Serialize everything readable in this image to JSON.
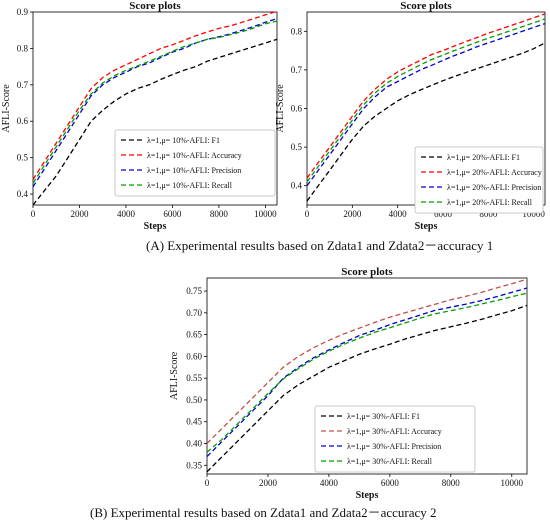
{
  "chart_data": [
    {
      "type": "line",
      "title": "Score plots",
      "xlabel": "Steps",
      "ylabel": "AFLI-Score",
      "xlim": [
        0,
        10500
      ],
      "ylim": [
        0.37,
        0.9
      ],
      "xticks": [
        0,
        2000,
        4000,
        6000,
        8000,
        10000
      ],
      "yticks": [
        0.4,
        0.5,
        0.6,
        0.7,
        0.8,
        0.9
      ],
      "ytick_labels": [
        "0.4",
        "0.5",
        "0.6",
        "0.7",
        "0.8",
        "0.9"
      ],
      "legend_position": "lower-right",
      "grid": false,
      "x": [
        0,
        500,
        1000,
        1500,
        2000,
        2500,
        3000,
        3500,
        4000,
        4500,
        5000,
        5500,
        6000,
        6500,
        7000,
        7500,
        8000,
        8500,
        9000,
        9500,
        10000,
        10500
      ],
      "series": [
        {
          "name": "λ=1,μ= 10%-AFLI: F1",
          "color": "#000000",
          "values": [
            0.37,
            0.41,
            0.45,
            0.5,
            0.55,
            0.6,
            0.63,
            0.655,
            0.675,
            0.69,
            0.7,
            0.715,
            0.728,
            0.74,
            0.75,
            0.765,
            0.775,
            0.785,
            0.795,
            0.805,
            0.815,
            0.825
          ]
        },
        {
          "name": "λ=1,μ= 10%-AFLI: Accuracy",
          "color": "#ff0000",
          "values": [
            0.44,
            0.49,
            0.54,
            0.59,
            0.64,
            0.69,
            0.72,
            0.74,
            0.755,
            0.77,
            0.785,
            0.8,
            0.81,
            0.822,
            0.835,
            0.845,
            0.855,
            0.862,
            0.872,
            0.882,
            0.892,
            0.902
          ]
        },
        {
          "name": "λ=1,μ= 10%-AFLI: Precision",
          "color": "#0000cc",
          "values": [
            0.42,
            0.47,
            0.52,
            0.57,
            0.62,
            0.67,
            0.7,
            0.72,
            0.735,
            0.75,
            0.76,
            0.775,
            0.79,
            0.8,
            0.815,
            0.825,
            0.832,
            0.84,
            0.85,
            0.86,
            0.872,
            0.882
          ]
        },
        {
          "name": "λ=1,μ= 10%-AFLI: Recall",
          "color": "#00a000",
          "values": [
            0.43,
            0.48,
            0.53,
            0.58,
            0.63,
            0.675,
            0.705,
            0.725,
            0.74,
            0.752,
            0.765,
            0.778,
            0.792,
            0.805,
            0.815,
            0.825,
            0.83,
            0.838,
            0.846,
            0.856,
            0.868,
            0.875
          ]
        }
      ]
    },
    {
      "type": "line",
      "title": "Score plots",
      "xlabel": "Steps",
      "ylabel": "AFLI-Score",
      "xlim": [
        0,
        10500
      ],
      "ylim": [
        0.35,
        0.85
      ],
      "xticks": [
        0,
        2000,
        4000,
        6000,
        8000,
        10000
      ],
      "yticks": [
        0.4,
        0.5,
        0.6,
        0.7,
        0.8
      ],
      "ytick_labels": [
        "0.4",
        "0.5",
        "0.6",
        "0.7",
        "0.8"
      ],
      "legend_position": "lower-right",
      "grid": false,
      "x": [
        0,
        500,
        1000,
        1500,
        2000,
        2500,
        3000,
        3500,
        4000,
        4500,
        5000,
        5500,
        6000,
        6500,
        7000,
        7500,
        8000,
        8500,
        9000,
        9500,
        10000,
        10500
      ],
      "series": [
        {
          "name": "λ=1,μ= 20%-AFLI: F1",
          "color": "#000000",
          "values": [
            0.36,
            0.4,
            0.44,
            0.48,
            0.52,
            0.555,
            0.58,
            0.6,
            0.62,
            0.635,
            0.648,
            0.66,
            0.672,
            0.683,
            0.693,
            0.703,
            0.713,
            0.723,
            0.733,
            0.743,
            0.755,
            0.77
          ]
        },
        {
          "name": "λ=1,μ= 20%-AFLI: Accuracy",
          "color": "#ff0000",
          "values": [
            0.42,
            0.46,
            0.5,
            0.54,
            0.58,
            0.62,
            0.65,
            0.675,
            0.695,
            0.71,
            0.725,
            0.74,
            0.75,
            0.762,
            0.773,
            0.784,
            0.795,
            0.805,
            0.815,
            0.825,
            0.835,
            0.845
          ]
        },
        {
          "name": "λ=1,μ= 20%-AFLI: Precision",
          "color": "#0000cc",
          "values": [
            0.4,
            0.44,
            0.48,
            0.52,
            0.56,
            0.6,
            0.63,
            0.655,
            0.67,
            0.685,
            0.7,
            0.712,
            0.725,
            0.737,
            0.748,
            0.76,
            0.77,
            0.78,
            0.79,
            0.8,
            0.81,
            0.82
          ]
        },
        {
          "name": "λ=1,μ= 20%-AFLI: Recall",
          "color": "#00a000",
          "values": [
            0.41,
            0.45,
            0.49,
            0.53,
            0.57,
            0.61,
            0.64,
            0.665,
            0.683,
            0.698,
            0.713,
            0.727,
            0.738,
            0.75,
            0.761,
            0.772,
            0.782,
            0.792,
            0.802,
            0.812,
            0.822,
            0.832
          ]
        }
      ]
    },
    {
      "type": "line",
      "title": "Score plots",
      "xlabel": "Steps",
      "ylabel": "AFLI-Score",
      "xlim": [
        0,
        10500
      ],
      "ylim": [
        0.33,
        0.78
      ],
      "xticks": [
        0,
        2000,
        4000,
        6000,
        8000,
        10000
      ],
      "yticks": [
        0.35,
        0.4,
        0.45,
        0.5,
        0.55,
        0.6,
        0.65,
        0.7,
        0.75
      ],
      "ytick_labels": [
        "0.35",
        "0.40",
        "0.45",
        "0.50",
        "0.55",
        "0.60",
        "0.65",
        "0.70",
        "0.75"
      ],
      "legend_position": "lower-right",
      "grid": false,
      "x": [
        0,
        500,
        1000,
        1500,
        2000,
        2500,
        3000,
        3500,
        4000,
        4500,
        5000,
        5500,
        6000,
        6500,
        7000,
        7500,
        8000,
        8500,
        9000,
        9500,
        10000,
        10500
      ],
      "series": [
        {
          "name": "λ=1,μ= 30%-AFLI: F1",
          "color": "#000000",
          "values": [
            0.335,
            0.37,
            0.405,
            0.44,
            0.475,
            0.51,
            0.535,
            0.555,
            0.575,
            0.59,
            0.605,
            0.617,
            0.628,
            0.64,
            0.65,
            0.66,
            0.668,
            0.676,
            0.685,
            0.695,
            0.705,
            0.717
          ]
        },
        {
          "name": "λ=1,μ= 30%-AFLI: Accuracy",
          "color": "#c0504d",
          "values": [
            0.4,
            0.435,
            0.47,
            0.505,
            0.54,
            0.575,
            0.6,
            0.62,
            0.637,
            0.652,
            0.665,
            0.678,
            0.69,
            0.7,
            0.71,
            0.72,
            0.73,
            0.738,
            0.747,
            0.757,
            0.767,
            0.777
          ]
        },
        {
          "name": "λ=1,μ= 30%-AFLI: Precision",
          "color": "#0000cc",
          "values": [
            0.37,
            0.405,
            0.44,
            0.475,
            0.51,
            0.55,
            0.575,
            0.597,
            0.615,
            0.632,
            0.648,
            0.66,
            0.673,
            0.684,
            0.695,
            0.706,
            0.713,
            0.72,
            0.728,
            0.737,
            0.747,
            0.757
          ]
        },
        {
          "name": "λ=1,μ= 30%-AFLI: Recall",
          "color": "#00a000",
          "values": [
            0.38,
            0.41,
            0.445,
            0.48,
            0.515,
            0.548,
            0.572,
            0.594,
            0.612,
            0.628,
            0.642,
            0.655,
            0.666,
            0.677,
            0.688,
            0.698,
            0.705,
            0.712,
            0.72,
            0.728,
            0.737,
            0.745
          ]
        }
      ]
    }
  ],
  "captions": {
    "a": "(A)  Experimental results based on Zdata1 and Zdata2－accuracy 1",
    "b": "(B)  Experimental results based on Zdata1 and Zdata2－accuracy 2"
  }
}
